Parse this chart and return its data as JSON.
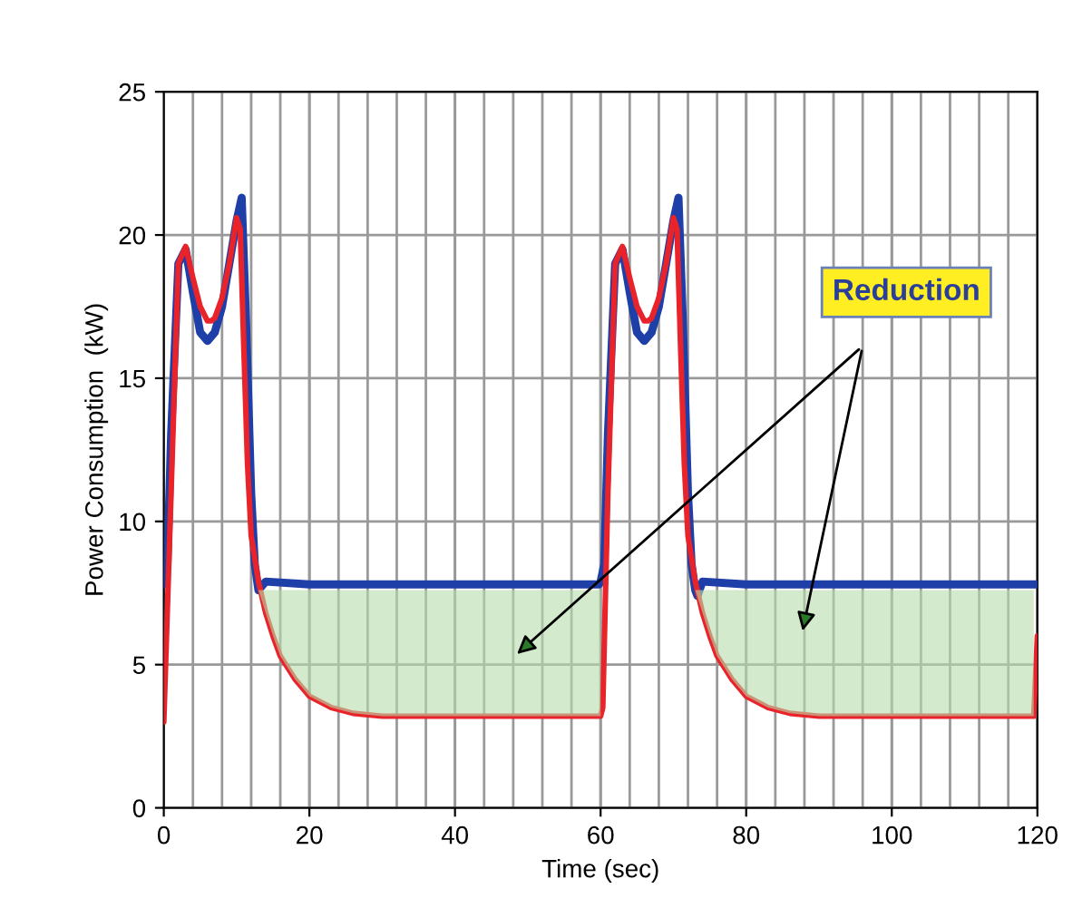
{
  "chart_data": {
    "type": "line",
    "xlabel": "Time (sec)",
    "ylabel": "Power Consumption  (kW)",
    "xlim": [
      0,
      120
    ],
    "xticks": [
      0,
      20,
      40,
      60,
      80,
      100,
      120
    ],
    "ylim": [
      0,
      25
    ],
    "yticks": [
      0,
      5,
      10,
      15,
      20,
      25
    ],
    "grid": true,
    "series": [
      {
        "color": "#1f3fa8",
        "x": [
          0,
          0.5,
          1,
          2,
          3,
          4,
          5,
          6,
          7,
          8,
          9,
          10,
          10.7,
          11.3,
          12,
          12.5,
          13,
          14,
          20,
          30,
          40,
          50,
          59.8,
          60,
          60.5,
          61,
          62,
          63,
          64,
          65,
          66,
          67,
          68,
          69,
          70,
          70.7,
          71.3,
          72,
          72.5,
          73,
          73.3,
          74,
          80,
          90,
          100,
          110,
          120
        ],
        "values": [
          7.8,
          8.5,
          13,
          19,
          19.5,
          18,
          16.6,
          16.3,
          16.6,
          17.5,
          19,
          20.5,
          21.3,
          17,
          11,
          8.5,
          7.6,
          7.9,
          7.8,
          7.8,
          7.8,
          7.8,
          7.8,
          7.9,
          8.5,
          13,
          19,
          19.5,
          18,
          16.6,
          16.3,
          16.6,
          17.5,
          19,
          20.5,
          21.3,
          17,
          11,
          8.5,
          7.6,
          7.4,
          7.9,
          7.8,
          7.8,
          7.8,
          7.8,
          7.8
        ]
      },
      {
        "color": "#e8232a",
        "x": [
          0,
          1,
          2,
          3,
          4,
          5,
          6,
          6.5,
          7,
          8,
          9,
          10,
          10.5,
          11,
          11.5,
          12,
          13,
          14,
          15,
          16,
          18,
          20,
          23,
          26,
          30,
          40,
          50,
          60,
          60.3,
          61,
          62,
          63,
          64,
          65,
          66,
          66.5,
          67,
          68,
          69,
          70,
          70.5,
          71,
          71.5,
          72,
          73,
          74,
          75,
          76,
          78,
          80,
          83,
          86,
          90,
          100,
          110,
          119.5,
          120
        ],
        "values": [
          3.0,
          11,
          19,
          19.6,
          18.5,
          17.5,
          17.0,
          17.0,
          17.1,
          17.8,
          19,
          20.6,
          20.2,
          16,
          12,
          9.5,
          7.9,
          6.8,
          6.0,
          5.3,
          4.5,
          3.9,
          3.5,
          3.3,
          3.2,
          3.2,
          3.2,
          3.2,
          3.5,
          11,
          19,
          19.6,
          18.5,
          17.5,
          17.0,
          17.0,
          17.1,
          17.8,
          19,
          20.6,
          20.2,
          16,
          12,
          9.5,
          7.9,
          6.8,
          6.0,
          5.3,
          4.5,
          3.9,
          3.5,
          3.3,
          3.2,
          3.2,
          3.2,
          3.2,
          6.0
        ],
        "lower": [
          null,
          null,
          null,
          null,
          null,
          null,
          null,
          null,
          null,
          null,
          null,
          null,
          null,
          null,
          null,
          null,
          7.6,
          6.8,
          6.0,
          5.3,
          4.5,
          3.9,
          3.5,
          3.3,
          3.2,
          3.2,
          3.2,
          3.2,
          null,
          null,
          null,
          null,
          null,
          null,
          null,
          null,
          null,
          null,
          null,
          null,
          null,
          null,
          null,
          null,
          7.6,
          6.8,
          6.0,
          5.3,
          4.5,
          3.9,
          3.5,
          3.3,
          3.2,
          3.2,
          3.2,
          3.2,
          null
        ],
        "upper": [
          null,
          null,
          null,
          null,
          null,
          null,
          null,
          null,
          null,
          null,
          null,
          null,
          null,
          null,
          null,
          null,
          7.6,
          7.6,
          7.6,
          7.6,
          7.6,
          7.6,
          7.6,
          7.6,
          7.6,
          7.6,
          7.6,
          7.6,
          null,
          null,
          null,
          null,
          null,
          null,
          null,
          null,
          null,
          null,
          null,
          null,
          null,
          null,
          null,
          null,
          7.6,
          7.6,
          7.6,
          7.6,
          7.6,
          7.6,
          7.6,
          7.6,
          7.6,
          7.6,
          7.6,
          7.6,
          null
        ]
      }
    ],
    "annotations": [
      "Reduction"
    ]
  }
}
